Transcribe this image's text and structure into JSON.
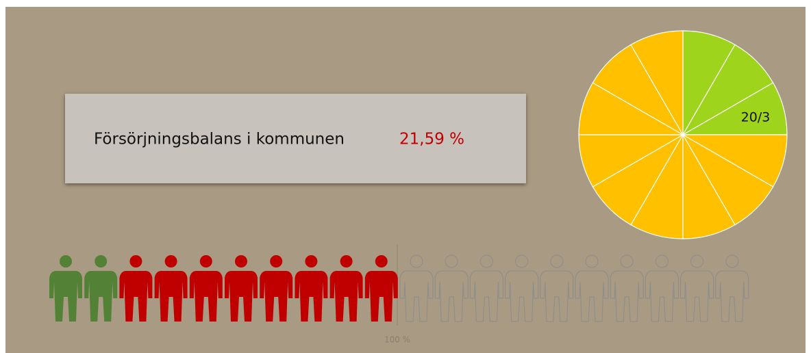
{
  "panel": {
    "title": "Försörjningsbalans i kommunen",
    "value": "21,59 %"
  },
  "pie": {
    "label": "20/3",
    "segments": [
      {
        "color": "#9ed41b",
        "count": 3
      },
      {
        "color": "#ffc000",
        "count": 9
      }
    ]
  },
  "people": {
    "groups": [
      {
        "color": "#538135",
        "count": 2,
        "style": "filled"
      },
      {
        "color": "#c00000",
        "count": 8,
        "style": "filled"
      },
      {
        "color": "#8c8c8c",
        "count": 10,
        "style": "outline"
      }
    ],
    "divider_label": "100 %"
  }
}
